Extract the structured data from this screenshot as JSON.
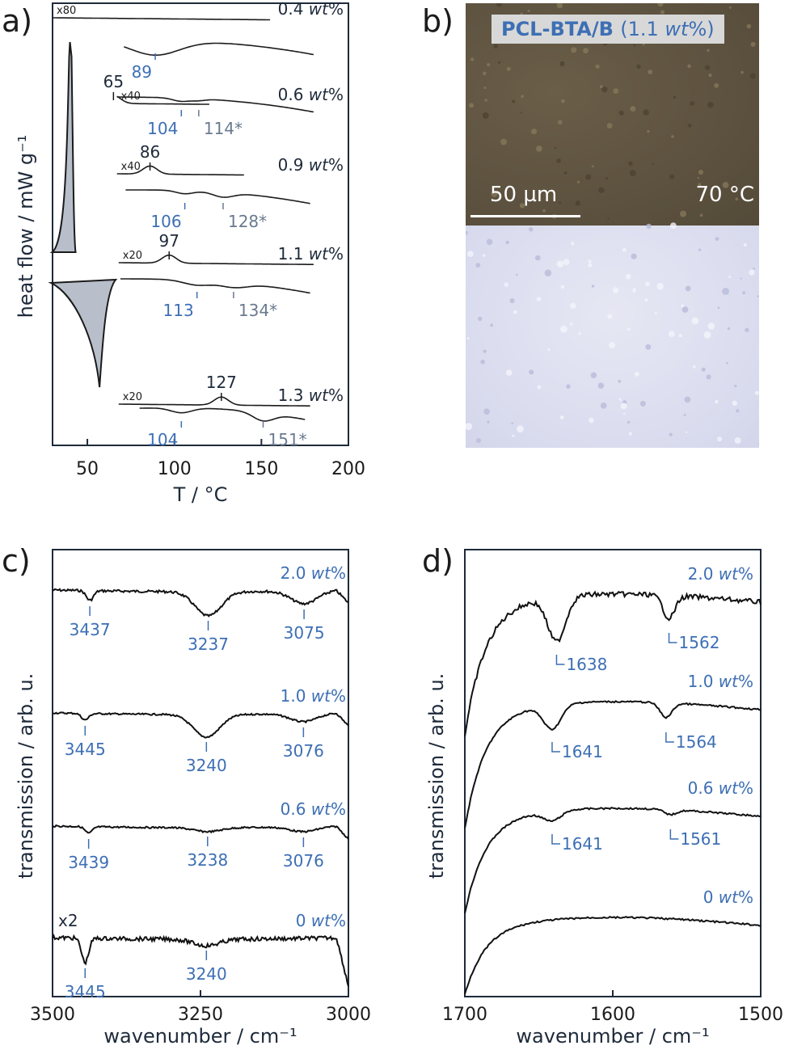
{
  "panel_labels": {
    "a": "a)",
    "b": "b)",
    "c": "c)",
    "d": "d)"
  },
  "colors": {
    "axis": "#1e2a3a",
    "blue": "#3d6fb4",
    "grey_label": "#6a7a90",
    "fill": "#b8bfcb"
  },
  "micrograph": {
    "title_main": "PCL-BTA/B",
    "title_conc": "(1.1 ",
    "title_conc_unit": "wt",
    "title_conc_end": "%)",
    "scale": "50 µm",
    "temperature": "70 °C"
  },
  "chart_data": [
    {
      "panel": "a",
      "type": "line",
      "xlabel": "T / °C",
      "ylabel": "heat flow / mW g⁻¹",
      "xlim": [
        30,
        200
      ],
      "xticks": [
        "50",
        "100",
        "150",
        "200"
      ],
      "xtick_values": [
        50,
        100,
        150,
        200
      ],
      "series": [
        {
          "name": "0.4 wt%",
          "multiplier": "x80",
          "cooling_peak": "",
          "heating_peaks": [
            "89"
          ]
        },
        {
          "name": "0.6 wt%",
          "multiplier": "x40",
          "cooling_peak": "65",
          "heating_peaks": [
            "104",
            "114*"
          ]
        },
        {
          "name": "0.9 wt%",
          "multiplier": "x40",
          "cooling_peak": "86",
          "heating_peaks": [
            "106",
            "128*"
          ]
        },
        {
          "name": "1.1 wt%",
          "multiplier": "x20",
          "cooling_peak": "97",
          "heating_peaks": [
            "113",
            "134*"
          ]
        },
        {
          "name": "1.3 wt%",
          "multiplier": "x20",
          "cooling_peak": "127",
          "heating_peaks": [
            "104",
            "151*"
          ]
        }
      ],
      "pcl_peaks": {
        "crystallization_c": 40,
        "melting_c": 57
      }
    },
    {
      "panel": "c",
      "type": "line",
      "xlabel": "wavenumber / cm⁻¹",
      "ylabel": "transmission / arb. u.",
      "xlim": [
        3500,
        3000
      ],
      "xticks": [
        "3500",
        "3250",
        "3000"
      ],
      "xtick_values": [
        3500,
        3250,
        3000
      ],
      "series": [
        {
          "name": "2.0 wt%",
          "peaks": [
            "3437",
            "3237",
            "3075"
          ],
          "peak_values": [
            3437,
            3237,
            3075
          ]
        },
        {
          "name": "1.0 wt%",
          "peaks": [
            "3445",
            "3240",
            "3076"
          ],
          "peak_values": [
            3445,
            3240,
            3076
          ]
        },
        {
          "name": "0.6 wt%",
          "peaks": [
            "3439",
            "3238",
            "3076"
          ],
          "peak_values": [
            3439,
            3238,
            3076
          ]
        },
        {
          "name": "0 wt%",
          "peaks": [
            "3445",
            "3240"
          ],
          "peak_values": [
            3445,
            3240
          ],
          "multiplier": "x2"
        }
      ]
    },
    {
      "panel": "d",
      "type": "line",
      "xlabel": "wavenumber / cm⁻¹",
      "ylabel": "transmission / arb. u.",
      "xlim": [
        1700,
        1500
      ],
      "xticks": [
        "1700",
        "1600",
        "1500"
      ],
      "xtick_values": [
        1700,
        1600,
        1500
      ],
      "series": [
        {
          "name": "2.0 wt%",
          "peaks": [
            "1638",
            "1562"
          ],
          "peak_values": [
            1638,
            1562
          ]
        },
        {
          "name": "1.0 wt%",
          "peaks": [
            "1641",
            "1564"
          ],
          "peak_values": [
            1641,
            1564
          ]
        },
        {
          "name": "0.6 wt%",
          "peaks": [
            "1641",
            "1561"
          ],
          "peak_values": [
            1641,
            1561
          ]
        },
        {
          "name": "0 wt%",
          "peaks": [],
          "peak_values": []
        }
      ]
    }
  ]
}
